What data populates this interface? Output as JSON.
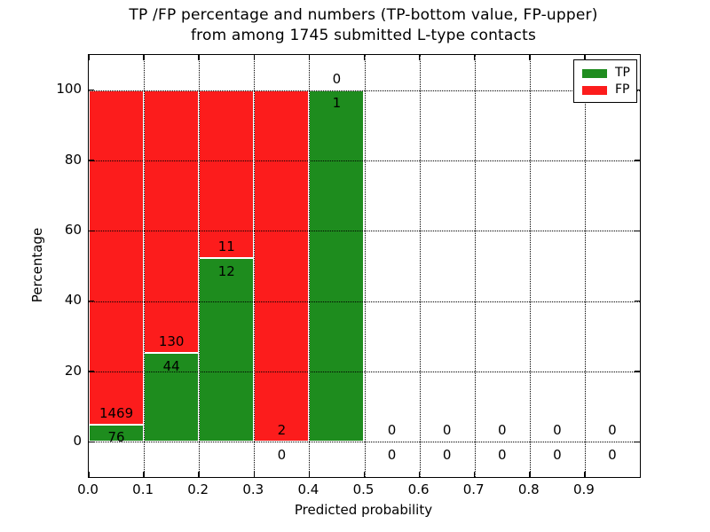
{
  "chart_data": {
    "type": "bar",
    "stacked": true,
    "title": "TP /FP percentage and numbers (TP-bottom value, FP-upper)",
    "subtitle": "from among 1745 submitted L-type contacts",
    "xlabel": "Predicted probability",
    "ylabel": "Percentage",
    "xlim": [
      0.0,
      1.0
    ],
    "ylim": [
      -10,
      110
    ],
    "grid": true,
    "legend_position": "upper right",
    "xticks": [
      0.0,
      0.1,
      0.2,
      0.3,
      0.4,
      0.5,
      0.6,
      0.7,
      0.8,
      0.9
    ],
    "xtick_labels": [
      "0.0",
      "0.1",
      "0.2",
      "0.3",
      "0.4",
      "0.5",
      "0.6",
      "0.7",
      "0.8",
      "0.9"
    ],
    "yticks": [
      0,
      20,
      40,
      60,
      80,
      100
    ],
    "ytick_labels": [
      "0",
      "20",
      "40",
      "60",
      "80",
      "100"
    ],
    "total_contacts": 1745,
    "series": [
      {
        "name": "TP",
        "color": "#1e8c1e"
      },
      {
        "name": "FP",
        "color": "#fc1c1c"
      }
    ],
    "bins": [
      {
        "range": [
          0.0,
          0.1
        ],
        "tp": 76,
        "fp": 1469,
        "tp_pct": 4.92,
        "fp_pct": 95.08
      },
      {
        "range": [
          0.1,
          0.2
        ],
        "tp": 44,
        "fp": 130,
        "tp_pct": 25.29,
        "fp_pct": 74.71
      },
      {
        "range": [
          0.2,
          0.3
        ],
        "tp": 12,
        "fp": 11,
        "tp_pct": 52.17,
        "fp_pct": 47.83
      },
      {
        "range": [
          0.3,
          0.4
        ],
        "tp": 0,
        "fp": 2,
        "tp_pct": 0,
        "fp_pct": 100
      },
      {
        "range": [
          0.4,
          0.5
        ],
        "tp": 1,
        "fp": 0,
        "tp_pct": 100,
        "fp_pct": 0
      },
      {
        "range": [
          0.5,
          0.6
        ],
        "tp": 0,
        "fp": 0,
        "tp_pct": 0,
        "fp_pct": 0
      },
      {
        "range": [
          0.6,
          0.7
        ],
        "tp": 0,
        "fp": 0,
        "tp_pct": 0,
        "fp_pct": 0
      },
      {
        "range": [
          0.7,
          0.8
        ],
        "tp": 0,
        "fp": 0,
        "tp_pct": 0,
        "fp_pct": 0
      },
      {
        "range": [
          0.8,
          0.9
        ],
        "tp": 0,
        "fp": 0,
        "tp_pct": 0,
        "fp_pct": 0
      },
      {
        "range": [
          0.9,
          1.0
        ],
        "tp": 0,
        "fp": 0,
        "tp_pct": 0,
        "fp_pct": 0
      }
    ]
  }
}
